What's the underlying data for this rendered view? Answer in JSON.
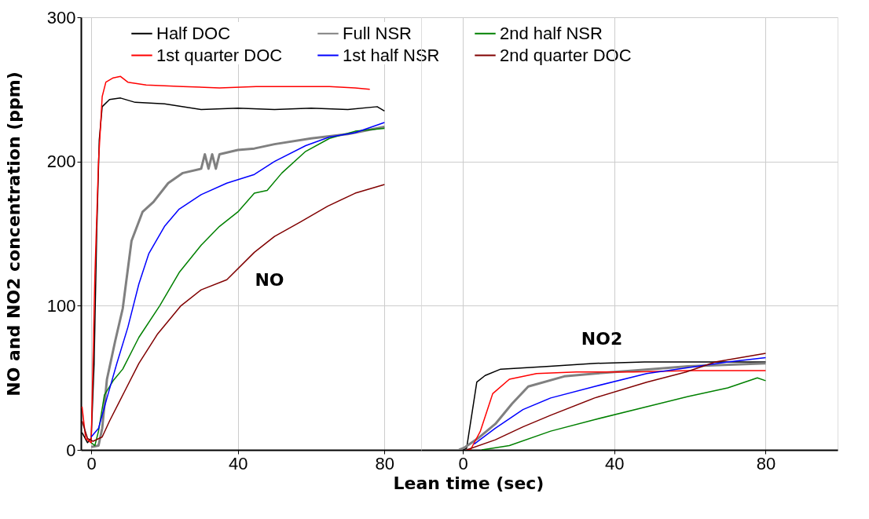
{
  "chart_data": [
    {
      "type": "line",
      "ylabel": "NO and NO2 concentration (ppm)",
      "xlim": [
        -2.8,
        90
      ],
      "xticks": [
        0,
        40,
        80
      ],
      "ylim": [
        0,
        300
      ],
      "yticks": [
        0,
        100,
        200,
        300
      ],
      "grid": true,
      "legend": "top",
      "annotations": [
        "NO"
      ],
      "series": [
        {
          "name": "Half DOC",
          "color": "#000000",
          "x": [
            -2.5,
            -1,
            0,
            0.8,
            1.5,
            2.2,
            3,
            5,
            8,
            12,
            20,
            30,
            40,
            50,
            60,
            70,
            78,
            80
          ],
          "values": [
            12,
            5,
            8,
            60,
            150,
            215,
            238,
            243,
            244,
            241,
            240,
            236,
            237,
            236,
            237,
            236,
            238,
            235
          ]
        },
        {
          "name": "Full NSR",
          "color": "#808080",
          "x": [
            0,
            2,
            3,
            4.3,
            6.5,
            8.6,
            11,
            14,
            17,
            21,
            25,
            30,
            31,
            32,
            33,
            34,
            35,
            40,
            44.5,
            50,
            60,
            70,
            80
          ],
          "values": [
            2,
            3,
            15,
            49,
            75,
            98,
            145,
            165,
            172,
            185,
            192,
            195,
            205,
            195,
            205,
            195,
            205,
            208,
            209,
            212,
            216,
            219,
            224
          ]
        },
        {
          "name": "2nd half NSR",
          "color": "#008000",
          "x": [
            0,
            1,
            2,
            3.6,
            6,
            8.6,
            13,
            18.7,
            24,
            30,
            35,
            40,
            44.5,
            48,
            52,
            58.5,
            65,
            72,
            80
          ],
          "values": [
            5,
            3,
            13,
            38,
            48,
            56,
            78,
            100,
            123,
            142,
            155,
            165,
            178,
            180,
            192,
            207,
            216,
            221,
            223
          ]
        },
        {
          "name": "1st quarter DOC",
          "color": "#ff0000",
          "x": [
            -2.5,
            -1.5,
            0,
            1,
            2,
            3,
            4,
            6,
            8,
            10,
            15,
            25,
            35,
            45,
            55,
            65,
            72,
            76
          ],
          "values": [
            30,
            8,
            5,
            120,
            200,
            245,
            255,
            258,
            259,
            255,
            253,
            252,
            251,
            252,
            252,
            252,
            251,
            250
          ]
        },
        {
          "name": "1st half NSR",
          "color": "#0000ff",
          "x": [
            0,
            2,
            4.3,
            7,
            10,
            13,
            15.7,
            20,
            24,
            30,
            37,
            44.5,
            50,
            58.5,
            65,
            72,
            80
          ],
          "values": [
            9,
            15,
            36,
            60,
            85,
            115,
            136,
            155,
            167,
            177,
            185,
            191,
            200,
            211,
            217,
            220,
            227
          ]
        },
        {
          "name": "2nd quarter DOC",
          "color": "#800000",
          "x": [
            -2.5,
            -1,
            0.5,
            3,
            5,
            9,
            13,
            18,
            24.5,
            30,
            37,
            44.5,
            50,
            57,
            64.5,
            72,
            80
          ],
          "values": [
            20,
            8,
            6,
            9,
            20,
            40,
            60,
            80,
            100,
            111,
            118,
            137,
            148,
            158,
            169,
            178,
            184
          ]
        }
      ]
    },
    {
      "type": "line",
      "xlabel": "Lean time (sec)",
      "xlim": [
        -11,
        99
      ],
      "xticks": [
        0,
        40,
        80
      ],
      "ylim": [
        0,
        300
      ],
      "yticks": [
        0,
        100,
        200,
        300
      ],
      "grid": true,
      "tick_labels": "x",
      "annotations": [
        "NO2"
      ],
      "series": [
        {
          "color": "#000000",
          "x": [
            0,
            1,
            3.7,
            5.9,
            10,
            23,
            35,
            48,
            60,
            80
          ],
          "values": [
            0,
            1,
            47,
            51.6,
            56,
            58,
            60,
            61,
            61,
            61
          ]
        },
        {
          "color": "#808080",
          "x": [
            -1,
            0.3,
            4,
            8.6,
            13,
            17.3,
            26.8,
            35,
            45,
            59.5,
            80
          ],
          "values": [
            0,
            1.4,
            8,
            18,
            32,
            44,
            51,
            53,
            55,
            58,
            60
          ]
        },
        {
          "color": "#008000",
          "x": [
            5,
            12.3,
            23.2,
            34.8,
            48.6,
            59.5,
            70,
            77.8,
            80
          ],
          "values": [
            0,
            3,
            13,
            21,
            30,
            37,
            43,
            50,
            48
          ]
        },
        {
          "color": "#ff0000",
          "x": [
            1,
            2.1,
            4.6,
            7.9,
            12.3,
            19.5,
            30,
            45,
            60,
            80
          ],
          "values": [
            0,
            0.4,
            12.7,
            39,
            49,
            53,
            54,
            54,
            55,
            55
          ]
        },
        {
          "color": "#0000ff",
          "x": [
            3,
            8.6,
            15.9,
            23.2,
            34.8,
            48.6,
            59.5,
            70,
            80
          ],
          "values": [
            4,
            15,
            28,
            36,
            44,
            53,
            57,
            61,
            64
          ]
        },
        {
          "color": "#800000",
          "x": [
            1,
            8.6,
            15.9,
            23.2,
            34.8,
            48.6,
            59,
            66.7,
            80
          ],
          "values": [
            0,
            7,
            16,
            24,
            36,
            47,
            54,
            61,
            67
          ]
        }
      ]
    }
  ]
}
